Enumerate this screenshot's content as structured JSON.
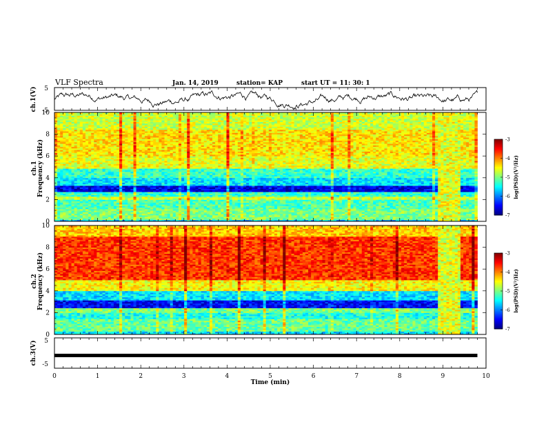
{
  "header": {
    "title": "VLF Spectra",
    "date": "Jan. 14, 2019",
    "station": "station= KAP",
    "start": "start  UT =   11: 30: 1"
  },
  "chart_data": [
    {
      "type": "line",
      "panel": "ch1-waveform",
      "ylabel": "ch.1(V)",
      "yticks": [
        "5",
        "-5"
      ],
      "ylim": [
        -5,
        5
      ],
      "xlim": [
        0,
        10
      ],
      "color": "#000000"
    },
    {
      "type": "heatmap",
      "panel": "ch1-spectrogram",
      "ylabel": "ch.1\nFrequency (kHz)",
      "ylabel_lines": [
        "ch.1",
        "Frequency (kHz)"
      ],
      "yticks": [
        "0",
        "2",
        "4",
        "6",
        "8",
        "10"
      ],
      "ylim": [
        0,
        10
      ],
      "xlim": [
        0,
        10
      ],
      "data_extent_min": 9.8,
      "colorbar": {
        "label": "log(PSD)(V²/Hz)",
        "ticks": [
          "-3",
          "-4",
          "-5",
          "-6",
          "-7"
        ],
        "range": [
          -7,
          -3
        ]
      },
      "bands": [
        {
          "from": 0.0,
          "to": 0.2,
          "level": -5.8
        },
        {
          "from": 0.2,
          "to": 1.2,
          "level": -5.0
        },
        {
          "from": 1.2,
          "to": 2.0,
          "level": -5.2
        },
        {
          "from": 2.0,
          "to": 2.3,
          "level": -4.7
        },
        {
          "from": 2.3,
          "to": 2.7,
          "level": -5.3
        },
        {
          "from": 2.7,
          "to": 3.3,
          "level": -6.6
        },
        {
          "from": 3.3,
          "to": 4.0,
          "level": -5.6
        },
        {
          "from": 4.0,
          "to": 4.8,
          "level": -5.3
        },
        {
          "from": 4.8,
          "to": 6.0,
          "level": -4.6
        },
        {
          "from": 6.0,
          "to": 8.5,
          "level": -4.4
        },
        {
          "from": 8.5,
          "to": 10.0,
          "level": -4.7
        }
      ]
    },
    {
      "type": "heatmap",
      "panel": "ch2-spectrogram",
      "ylabel": "ch.2\nFrequency (kHz)",
      "ylabel_lines": [
        "ch.2",
        "Frequency (kHz)"
      ],
      "yticks": [
        "0",
        "2",
        "4",
        "6",
        "8",
        "10"
      ],
      "ylim": [
        0,
        10
      ],
      "xlim": [
        0,
        10
      ],
      "data_extent_min": 9.8,
      "colorbar": {
        "label": "log(PSD)(V²/Hz)",
        "ticks": [
          "-3",
          "-4",
          "-5",
          "-6",
          "-7"
        ],
        "range": [
          -7,
          -3
        ]
      },
      "bands": [
        {
          "from": 0.0,
          "to": 0.3,
          "level": -5.6
        },
        {
          "from": 0.3,
          "to": 1.5,
          "level": -5.1
        },
        {
          "from": 1.5,
          "to": 2.0,
          "level": -5.4
        },
        {
          "from": 2.0,
          "to": 2.5,
          "level": -5.0
        },
        {
          "from": 2.5,
          "to": 3.2,
          "level": -6.5
        },
        {
          "from": 3.2,
          "to": 4.0,
          "level": -5.6
        },
        {
          "from": 4.0,
          "to": 5.0,
          "level": -4.5
        },
        {
          "from": 5.0,
          "to": 9.0,
          "level": -3.7
        },
        {
          "from": 9.0,
          "to": 10.0,
          "level": -4.3
        }
      ]
    },
    {
      "type": "line",
      "panel": "ch3-waveform",
      "ylabel": "ch.3(V)",
      "yticks": [
        "5",
        "-5"
      ],
      "ylim": [
        -5,
        5
      ],
      "xlim": [
        0,
        10
      ],
      "constant_value": -0.8,
      "color": "#000000"
    }
  ],
  "xaxis": {
    "label": "Time (min)",
    "ticks": [
      "0",
      "1",
      "2",
      "3",
      "4",
      "5",
      "6",
      "7",
      "8",
      "9",
      "10"
    ],
    "range": [
      0,
      10
    ]
  },
  "colors": {
    "background": "#ffffff",
    "frame": "#000000"
  }
}
